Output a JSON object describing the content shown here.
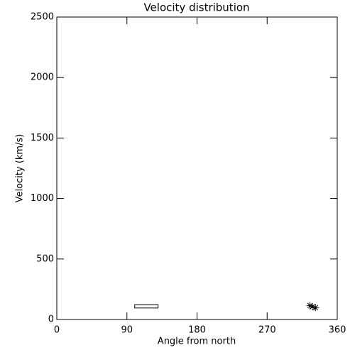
{
  "chart_data": {
    "type": "scatter",
    "title": "Velocity distribution",
    "x_label": "Angle from north",
    "y_label": "Velocity (km/s)",
    "xlim": [
      0,
      360
    ],
    "xticks": [
      0,
      90,
      180,
      270,
      360
    ],
    "ylim": [
      0,
      2500
    ],
    "yticks": [
      0,
      500,
      1000,
      1500,
      2000,
      2500
    ],
    "color": "#000000",
    "region": {
      "x": [
        100,
        130
      ],
      "y": [
        95,
        123
      ]
    },
    "x": [
      325,
      328,
      332
    ],
    "values": [
      115,
      105,
      98
    ]
  }
}
